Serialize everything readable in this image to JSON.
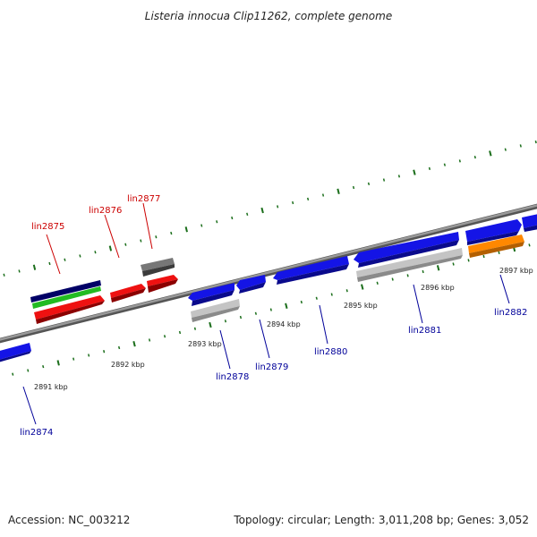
{
  "title": "Listeria innocua Clip11262, complete genome",
  "footer": {
    "accession": "Accession: NC_003212",
    "summary": "Topology: circular; Length: 3,011,208 bp; Genes: 3,052"
  },
  "colors": {
    "label_above": "#cc0000",
    "label_below": "#000099",
    "tick": "#1b6e1b",
    "backbone": "#808080"
  },
  "kbp_ticks": [
    {
      "label": "2891 kbp"
    },
    {
      "label": "2892 kbp"
    },
    {
      "label": "2893 kbp"
    },
    {
      "label": "2894 kbp"
    },
    {
      "label": "2895 kbp"
    },
    {
      "label": "2896 kbp"
    },
    {
      "label": "2897 kbp"
    }
  ],
  "gene_labels": {
    "above": [
      "lin2875",
      "lin2876",
      "lin2877"
    ],
    "below": [
      "lin2874",
      "lin2878",
      "lin2879",
      "lin2880",
      "lin2881",
      "lin2882"
    ]
  },
  "feature_colors": {
    "blue": "#1414e6",
    "navy": "#000066",
    "green": "#22bb22",
    "red": "#ee1111",
    "gray": "#666666",
    "lightgray": "#c4c4c4",
    "orange": "#ff8800"
  }
}
